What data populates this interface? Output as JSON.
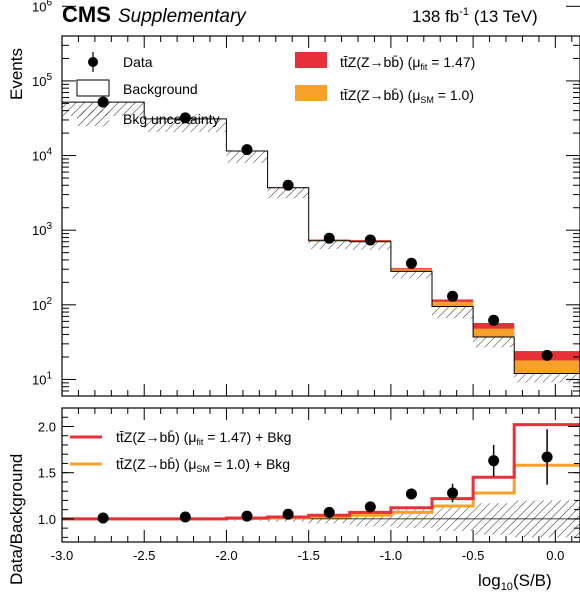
{
  "header": {
    "experiment": "CMS",
    "label": "Supplementary",
    "lumi": "138 fb",
    "lumi_exp": "-1",
    "energy": " (13 TeV)"
  },
  "chart_data": [
    {
      "type": "histogram",
      "panel": "main",
      "ylabel": "Events",
      "yscale": "log",
      "ylim": [
        6,
        400000
      ],
      "xlim": [
        -3.0,
        0.15
      ],
      "bin_edges": [
        -3.0,
        -2.5,
        -2.0,
        -1.75,
        -1.5,
        -1.25,
        -1.0,
        -0.75,
        -0.5,
        -0.25,
        0.15
      ],
      "background": [
        52000,
        31000,
        11500,
        3700,
        720,
        700,
        280,
        95,
        37,
        12
      ],
      "signal_sm": [
        52200,
        31100,
        11600,
        3740,
        740,
        720,
        300,
        110,
        48,
        18
      ],
      "signal_fit": [
        52300,
        31200,
        11650,
        3760,
        750,
        740,
        310,
        118,
        57,
        24
      ],
      "data": {
        "x": [
          -2.75,
          -2.25,
          -1.875,
          -1.625,
          -1.375,
          -1.125,
          -0.875,
          -0.625,
          -0.375,
          -0.05
        ],
        "y": [
          52000,
          32000,
          12000,
          4000,
          780,
          740,
          360,
          130,
          62,
          21
        ]
      },
      "yticks": [
        {
          "base": "10",
          "exp": "1"
        },
        {
          "base": "10",
          "exp": "2"
        },
        {
          "base": "10",
          "exp": "3"
        },
        {
          "base": "10",
          "exp": "4"
        },
        {
          "base": "10",
          "exp": "5"
        },
        {
          "base": "10",
          "exp": "6"
        }
      ],
      "legend": {
        "data": "Data",
        "background": "Background",
        "bkg_unc": "Bkg uncertainty",
        "fit": {
          "main": "tt̄Z(Z→bb̄) (μ",
          "sub": "fit",
          "tail": " = 1.47)"
        },
        "sm": {
          "main": "tt̄Z(Z→bb̄) (μ",
          "sub": "SM",
          "tail": " = 1.0)"
        }
      },
      "colors": {
        "fit": "#e8303a",
        "sm": "#f7a02a"
      }
    },
    {
      "type": "histogram",
      "panel": "ratio",
      "ylabel": "Data/Background",
      "xlabel": {
        "main": "log",
        "sub": "10",
        "tail": "(S/B)"
      },
      "ylim": [
        0.75,
        2.2
      ],
      "yticks": [
        "1.0",
        "1.5",
        "2.0"
      ],
      "xticks": [
        "-3.0",
        "-2.5",
        "-2.0",
        "-1.5",
        "-1.0",
        "-0.5",
        "0.0"
      ],
      "xtick_values": [
        -3.0,
        -2.5,
        -2.0,
        -1.5,
        -1.0,
        -0.5,
        0.0
      ],
      "ytick_values": [
        1.0,
        1.5,
        2.0
      ],
      "fit_ratio": [
        1.0,
        1.0,
        1.01,
        1.02,
        1.04,
        1.07,
        1.12,
        1.22,
        1.45,
        2.02
      ],
      "sm_ratio": [
        1.0,
        1.0,
        1.005,
        1.01,
        1.02,
        1.04,
        1.07,
        1.14,
        1.28,
        1.58
      ],
      "unc_band": [
        0.015,
        0.015,
        0.02,
        0.03,
        0.05,
        0.08,
        0.1,
        0.13,
        0.17,
        0.2
      ],
      "data": {
        "x": [
          -2.75,
          -2.25,
          -1.875,
          -1.625,
          -1.375,
          -1.125,
          -0.875,
          -0.625,
          -0.375,
          -0.05
        ],
        "y": [
          1.01,
          1.02,
          1.03,
          1.05,
          1.07,
          1.13,
          1.27,
          1.28,
          1.63,
          1.67
        ],
        "err": [
          0.005,
          0.006,
          0.01,
          0.02,
          0.04,
          0.04,
          0.06,
          0.1,
          0.17,
          0.3
        ]
      },
      "legend": {
        "fit": {
          "main": "tt̄Z(Z→bb̄) (μ",
          "sub": "fit",
          "tail": " = 1.47) + Bkg"
        },
        "sm": {
          "main": "tt̄Z(Z→bb̄) (μ",
          "sub": "SM",
          "tail": " = 1.0) + Bkg"
        }
      }
    }
  ]
}
